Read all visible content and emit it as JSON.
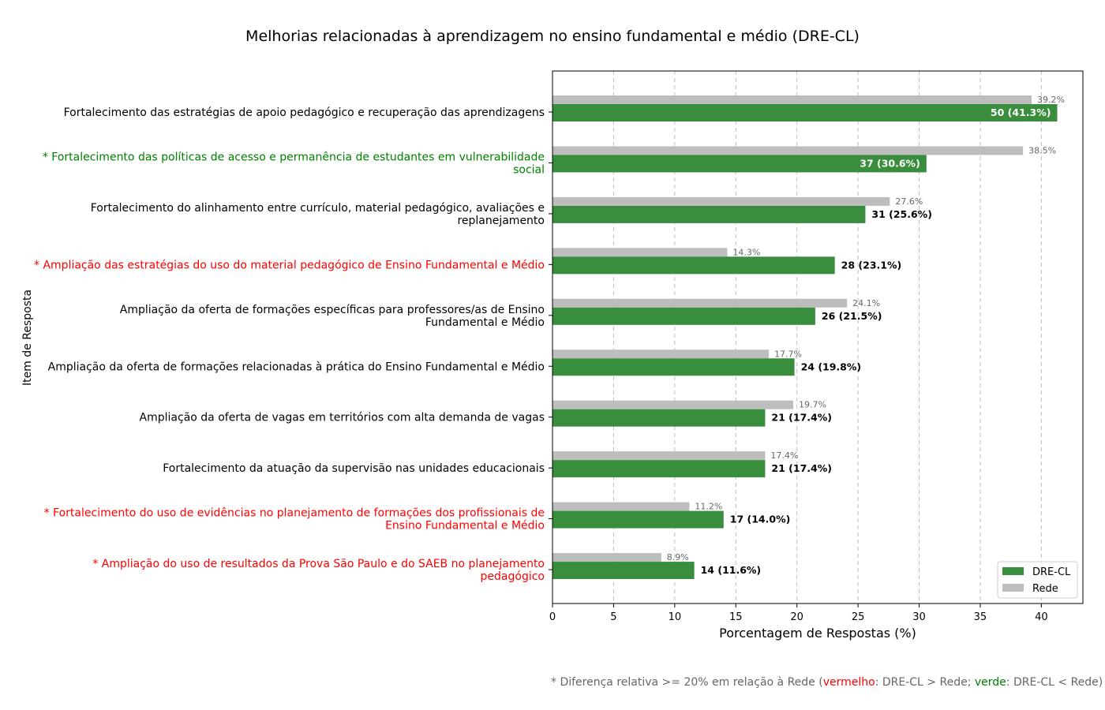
{
  "chart_data": {
    "type": "bar",
    "orientation": "horizontal",
    "title": "Melhorias relacionadas à aprendizagem no ensino fundamental e médio (DRE-CL)",
    "xlabel": "Porcentagem de Respostas (%)",
    "ylabel": "Item de Resposta",
    "xlim": [
      0,
      43.4
    ],
    "xticks": [
      "0",
      "5",
      "10",
      "15",
      "20",
      "25",
      "30",
      "35",
      "40"
    ],
    "grid": "x",
    "legend_position": "bottom-right",
    "categories": [
      {
        "lines": [
          "Fortalecimento das estratégias de apoio pedagógico e recuperação das aprendizagens"
        ],
        "highlight": "none"
      },
      {
        "lines": [
          "* Fortalecimento das políticas de acesso e permanência de estudantes em vulnerabilidade",
          "social"
        ],
        "highlight": "green"
      },
      {
        "lines": [
          "Fortalecimento do alinhamento entre currículo, material pedagógico, avaliações e",
          "replanejamento"
        ],
        "highlight": "none"
      },
      {
        "lines": [
          "* Ampliação das estratégias do uso do material pedagógico de Ensino Fundamental e Médio"
        ],
        "highlight": "red"
      },
      {
        "lines": [
          "Ampliação da oferta de formações específicas para professores/as de Ensino",
          "Fundamental e Médio"
        ],
        "highlight": "none"
      },
      {
        "lines": [
          "Ampliação da oferta de formações relacionadas à prática do Ensino Fundamental e Médio"
        ],
        "highlight": "none"
      },
      {
        "lines": [
          "Ampliação da oferta de vagas em territórios com alta demanda de vagas"
        ],
        "highlight": "none"
      },
      {
        "lines": [
          "Fortalecimento da atuação da supervisão nas unidades educacionais"
        ],
        "highlight": "none"
      },
      {
        "lines": [
          "* Fortalecimento do uso de evidências no planejamento de formações dos profissionais de",
          "Ensino Fundamental e Médio"
        ],
        "highlight": "red"
      },
      {
        "lines": [
          "* Ampliação do uso de resultados da Prova São Paulo e do SAEB no planejamento",
          "pedagógico"
        ],
        "highlight": "red"
      }
    ],
    "series": [
      {
        "name": "DRE-CL",
        "color": "#388e3c",
        "values": [
          41.3,
          30.6,
          25.6,
          23.1,
          21.5,
          19.8,
          17.4,
          17.4,
          14.0,
          11.6
        ],
        "labels": [
          "50 (41.3%)",
          "37 (30.6%)",
          "31 (25.6%)",
          "28 (23.1%)",
          "26 (21.5%)",
          "24 (19.8%)",
          "21 (17.4%)",
          "21 (17.4%)",
          "17 (14.0%)",
          "14 (11.6%)"
        ]
      },
      {
        "name": "Rede",
        "color": "#bdbdbd",
        "values": [
          39.2,
          38.5,
          27.6,
          14.3,
          24.1,
          17.7,
          19.7,
          17.4,
          11.2,
          8.9
        ],
        "labels": [
          "39.2%",
          "38.5%",
          "27.6%",
          "14.3%",
          "24.1%",
          "17.7%",
          "19.7%",
          "17.4%",
          "11.2%",
          "8.9%"
        ]
      }
    ],
    "colors": {
      "highlight_red": "#ff0000",
      "highlight_green": "#008000",
      "muted": "#666666"
    },
    "footnote": {
      "prefix": "* Diferença relativa >= 20% em relação à Rede (",
      "red_word": "vermelho",
      "middle": ": DRE-CL > Rede; ",
      "green_word": "verde",
      "suffix": ": DRE-CL < Rede)"
    }
  }
}
